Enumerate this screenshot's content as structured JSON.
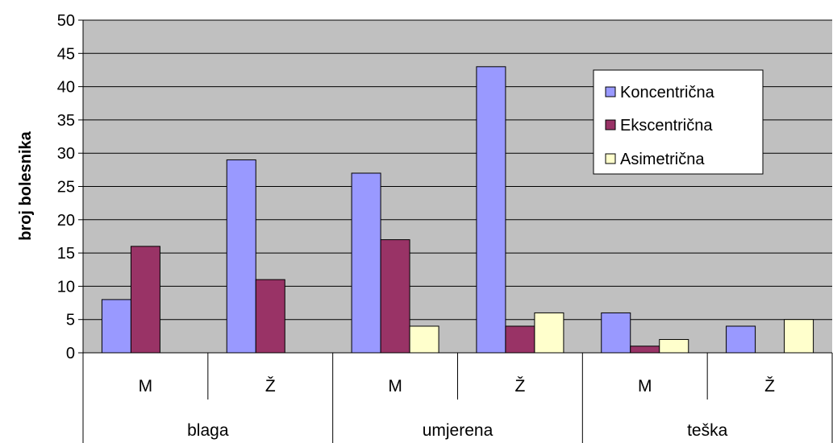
{
  "chart_data": {
    "type": "bar",
    "ylabel": "broj bolesnika",
    "xlabel": "",
    "ylim": [
      0,
      50
    ],
    "ytick_step": 5,
    "grid": true,
    "legend_position": "right",
    "categories": [
      "M",
      "Ž",
      "M",
      "Ž",
      "M",
      "Ž"
    ],
    "groups": [
      {
        "label": "blaga",
        "categories": [
          "M",
          "Ž"
        ]
      },
      {
        "label": "umjerena",
        "categories": [
          "M",
          "Ž"
        ]
      },
      {
        "label": "teška",
        "categories": [
          "M",
          "Ž"
        ]
      }
    ],
    "series": [
      {
        "name": "Koncentrična",
        "color": "#9999ff",
        "values": [
          8,
          29,
          27,
          43,
          6,
          4
        ]
      },
      {
        "name": "Ekscentrična",
        "color": "#993366",
        "values": [
          16,
          11,
          17,
          4,
          1,
          0
        ]
      },
      {
        "name": "Asimetrična",
        "color": "#ffffcc",
        "values": [
          0,
          0,
          4,
          6,
          2,
          5
        ]
      }
    ],
    "plot_background": "#c0c0c0"
  }
}
